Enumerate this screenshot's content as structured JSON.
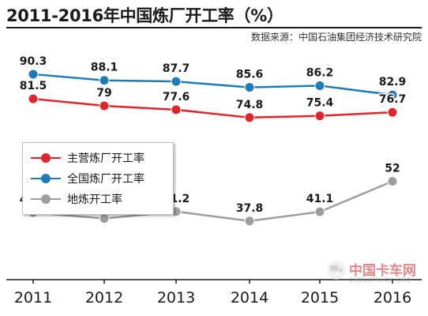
{
  "page": {
    "title": "2011-2016年中国炼厂开工率（%）",
    "source": "数据来源：中国石油集团经济技术研究院"
  },
  "watermark": {
    "name": "中国卡车网",
    "site": "CHINATRUCK.ORG"
  },
  "chart_data": {
    "type": "line",
    "title": "2011-2016年中国炼厂开工率（%）",
    "xlabel": "",
    "ylabel": "",
    "x": [
      "2011",
      "2012",
      "2013",
      "2014",
      "2015",
      "2016"
    ],
    "series": [
      {
        "name": "全国炼厂开工率",
        "color": "#1f7bb6",
        "values": [
          90.3,
          88.1,
          87.7,
          85.6,
          86.2,
          82.9
        ]
      },
      {
        "name": "主营炼厂开工率",
        "color": "#e0262a",
        "values": [
          81.5,
          79,
          77.6,
          74.8,
          75.4,
          76.7
        ]
      },
      {
        "name": "地炼开工率",
        "color": "#9e9e9e",
        "values": [
          40.8,
          38.7,
          41.2,
          37.8,
          41.1,
          52
        ]
      }
    ],
    "legend_order": [
      "主营炼厂开工率",
      "全国炼厂开工率",
      "地炼开工率"
    ],
    "legend_position": "middle-left",
    "grid": false
  }
}
